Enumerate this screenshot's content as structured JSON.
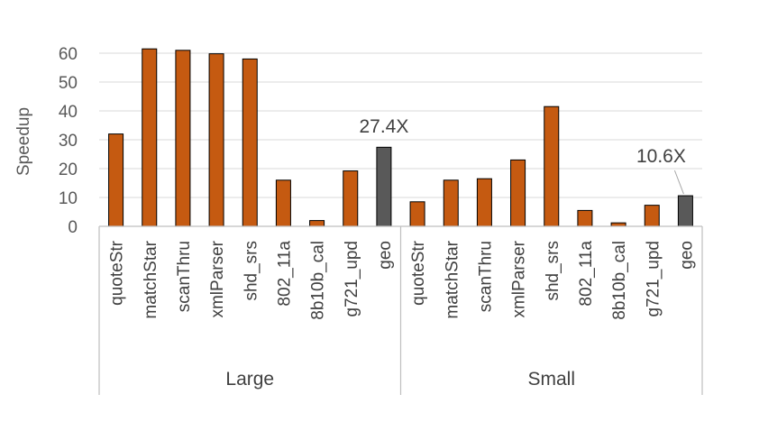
{
  "chart_data": {
    "type": "bar",
    "ylabel": "Speedup",
    "ylim": [
      0,
      65
    ],
    "yticks": [
      0,
      10,
      20,
      30,
      40,
      50,
      60
    ],
    "grid": true,
    "legend": "none",
    "groups": [
      {
        "name": "Large",
        "categories": [
          "quoteStr",
          "matchStar",
          "scanThru",
          "xmlParser",
          "shd_srs",
          "802_11a",
          "8b10b_cal",
          "g721_upd",
          "geo"
        ],
        "values": [
          32,
          61.5,
          61,
          59.8,
          58,
          16,
          2,
          19.2,
          27.4
        ]
      },
      {
        "name": "Small",
        "categories": [
          "quoteStr",
          "matchStar",
          "scanThru",
          "xmlParser",
          "shd_srs",
          "802_11a",
          "8b10b_cal",
          "g721_upd",
          "geo"
        ],
        "values": [
          8.5,
          16,
          16.5,
          23,
          41.5,
          5.5,
          1.2,
          7.3,
          10.6
        ]
      }
    ],
    "annotations": [
      {
        "group": 0,
        "label": "27.4X"
      },
      {
        "group": 1,
        "label": "10.6X"
      }
    ],
    "colors": {
      "bar": "#C55A11",
      "geo": "#595959",
      "outline": "#000000",
      "grid": "#D9D9D9",
      "axis": "#BFBFBF"
    }
  }
}
